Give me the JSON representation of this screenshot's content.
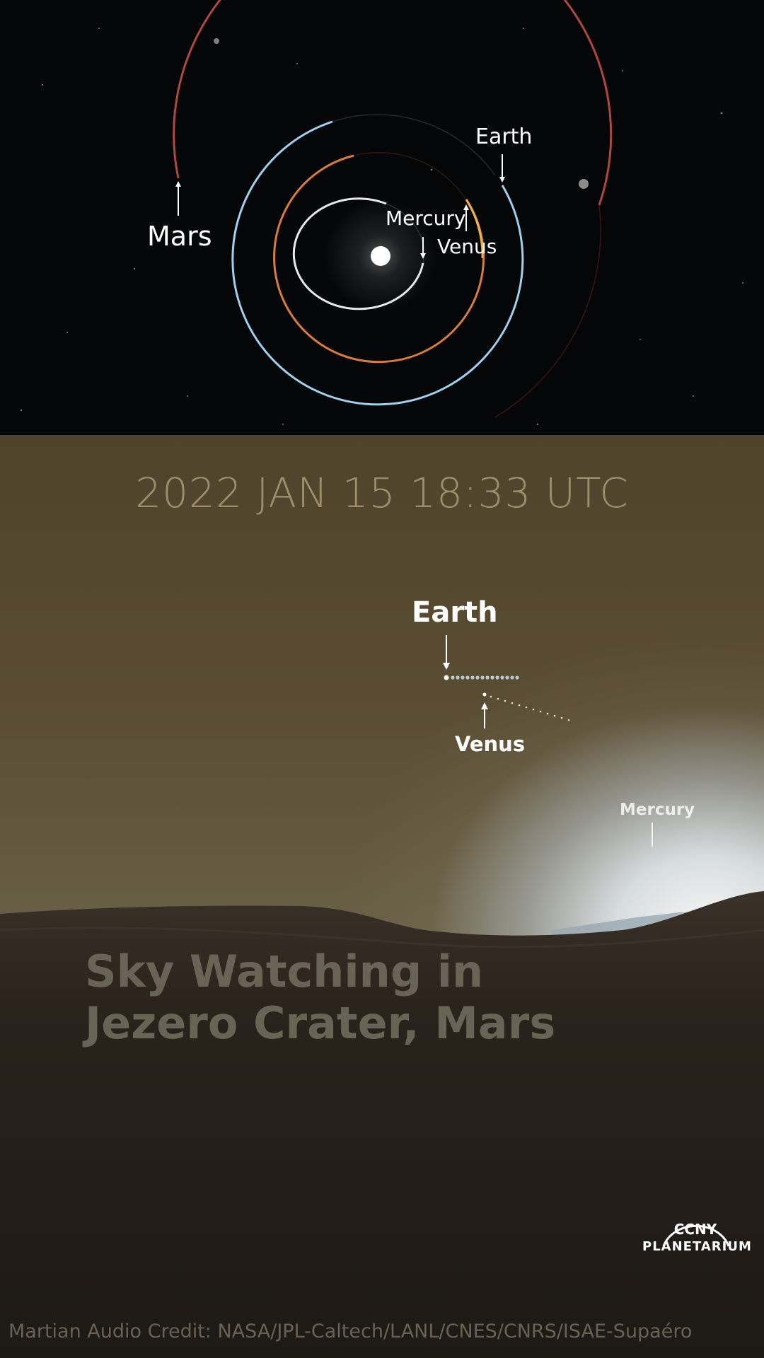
{
  "top_panel": {
    "labels": {
      "mars": "Mars",
      "earth": "Earth",
      "mercury": "Mercury",
      "venus": "Venus"
    },
    "colors": {
      "mars_orbit": "#c0504a",
      "earth_orbit": "#9fd0ee",
      "venus_orbit": "#f0b050",
      "mercury_orbit": "#e8e8e8"
    }
  },
  "bottom_panel": {
    "timestamp": "2022 JAN 15 18:33 UTC",
    "labels": {
      "earth": "Earth",
      "venus": "Venus",
      "mercury": "Mercury"
    },
    "title_line1": "Sky Watching in",
    "title_line2": "Jezero Crater, Mars",
    "credit": "Martian Audio Credit: NASA/JPL-Caltech/LANL/CNES/CNRS/ISAE-Supaéro",
    "logo": {
      "line1": "CCNY",
      "line2": "PLANETARIUM"
    }
  }
}
